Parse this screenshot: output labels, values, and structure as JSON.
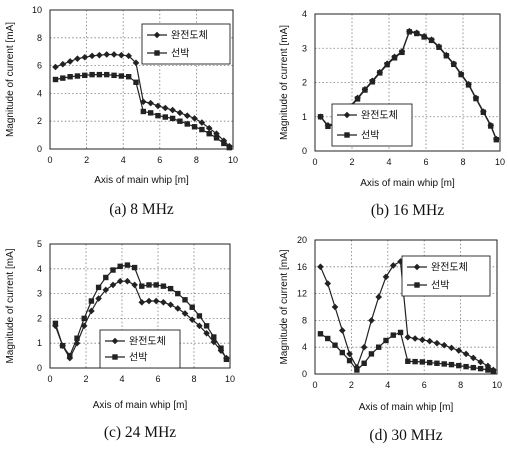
{
  "chart_data": [
    {
      "type": "line",
      "caption": "(a)  8  MHz",
      "xlabel": "Axis of main whip [m]",
      "ylabel": "Magnitude of current [mA]",
      "xlim": [
        0,
        10
      ],
      "ylim": [
        0,
        10
      ],
      "xticks": [
        0,
        2,
        4,
        6,
        8,
        10
      ],
      "yticks": [
        0,
        2,
        4,
        6,
        8,
        10
      ],
      "legend": "top-right",
      "series": [
        {
          "name": "완전도체",
          "marker": "diamond",
          "x": [
            0.3,
            0.7,
            1.1,
            1.5,
            1.9,
            2.3,
            2.7,
            3.1,
            3.5,
            3.9,
            4.3,
            4.7,
            5.1,
            5.5,
            5.9,
            6.3,
            6.7,
            7.1,
            7.5,
            7.9,
            8.3,
            8.7,
            9.1,
            9.5,
            9.8
          ],
          "y": [
            5.9,
            6.1,
            6.3,
            6.5,
            6.6,
            6.7,
            6.75,
            6.8,
            6.8,
            6.75,
            6.7,
            6.2,
            3.4,
            3.3,
            3.1,
            2.95,
            2.8,
            2.6,
            2.4,
            2.2,
            1.9,
            1.5,
            1.1,
            0.6,
            0.2
          ]
        },
        {
          "name": "선박",
          "marker": "square",
          "x": [
            0.3,
            0.7,
            1.1,
            1.5,
            1.9,
            2.3,
            2.7,
            3.1,
            3.5,
            3.9,
            4.3,
            4.7,
            5.1,
            5.5,
            5.9,
            6.3,
            6.7,
            7.1,
            7.5,
            7.9,
            8.3,
            8.7,
            9.1,
            9.5,
            9.8
          ],
          "y": [
            5.0,
            5.1,
            5.2,
            5.25,
            5.3,
            5.35,
            5.35,
            5.35,
            5.3,
            5.25,
            5.2,
            4.8,
            2.7,
            2.6,
            2.4,
            2.3,
            2.2,
            2.0,
            1.8,
            1.6,
            1.4,
            1.1,
            0.8,
            0.4,
            0.1
          ]
        }
      ]
    },
    {
      "type": "line",
      "caption": "(b)  16  MHz",
      "xlabel": "Axis of main whip [m]",
      "ylabel": "Magnitude of current [mA]",
      "xlim": [
        0,
        10
      ],
      "ylim": [
        0,
        4
      ],
      "xticks": [
        0,
        2,
        4,
        6,
        8,
        10
      ],
      "yticks": [
        0,
        1,
        2,
        3,
        4
      ],
      "legend": "bottom-left",
      "series": [
        {
          "name": "완전도체",
          "marker": "diamond",
          "x": [
            0.3,
            0.7,
            1.1,
            1.5,
            1.9,
            2.3,
            2.7,
            3.1,
            3.5,
            3.9,
            4.3,
            4.7,
            5.1,
            5.5,
            5.9,
            6.3,
            6.7,
            7.1,
            7.5,
            7.9,
            8.3,
            8.7,
            9.1,
            9.5,
            9.8
          ],
          "y": [
            1.0,
            0.75,
            0.8,
            1.0,
            1.3,
            1.55,
            1.8,
            2.05,
            2.3,
            2.55,
            2.75,
            2.9,
            3.5,
            3.45,
            3.35,
            3.25,
            3.05,
            2.8,
            2.55,
            2.25,
            1.95,
            1.55,
            1.15,
            0.75,
            0.35
          ]
        },
        {
          "name": "선박",
          "marker": "square",
          "x": [
            0.3,
            0.7,
            1.1,
            1.5,
            1.9,
            2.3,
            2.7,
            3.1,
            3.5,
            3.9,
            4.3,
            4.7,
            5.1,
            5.5,
            5.9,
            6.3,
            6.7,
            7.1,
            7.5,
            7.9,
            8.3,
            8.7,
            9.1,
            9.5,
            9.8
          ],
          "y": [
            1.0,
            0.72,
            0.78,
            0.98,
            1.28,
            1.52,
            1.78,
            2.02,
            2.28,
            2.52,
            2.72,
            2.88,
            3.48,
            3.43,
            3.33,
            3.23,
            3.03,
            2.78,
            2.53,
            2.23,
            1.93,
            1.53,
            1.13,
            0.73,
            0.33
          ]
        }
      ]
    },
    {
      "type": "line",
      "caption": "(c)  24  MHz",
      "xlabel": "Axis of main whip [m]",
      "ylabel": "Magnitude of current [mA]",
      "xlim": [
        0,
        10
      ],
      "ylim": [
        0,
        5
      ],
      "xticks": [
        0,
        2,
        4,
        6,
        8,
        10
      ],
      "yticks": [
        0,
        1,
        2,
        3,
        4,
        5
      ],
      "legend": "bottom-center",
      "series": [
        {
          "name": "완전도체",
          "marker": "diamond",
          "x": [
            0.3,
            0.7,
            1.1,
            1.5,
            1.9,
            2.3,
            2.7,
            3.1,
            3.5,
            3.9,
            4.3,
            4.7,
            5.1,
            5.5,
            5.9,
            6.3,
            6.7,
            7.1,
            7.5,
            7.9,
            8.3,
            8.7,
            9.1,
            9.5,
            9.8
          ],
          "y": [
            1.7,
            0.9,
            0.4,
            1.0,
            1.7,
            2.3,
            2.8,
            3.15,
            3.35,
            3.5,
            3.5,
            3.35,
            2.65,
            2.7,
            2.7,
            2.65,
            2.55,
            2.4,
            2.2,
            1.95,
            1.7,
            1.4,
            1.05,
            0.7,
            0.4
          ]
        },
        {
          "name": "선박",
          "marker": "square",
          "x": [
            0.3,
            0.7,
            1.1,
            1.5,
            1.9,
            2.3,
            2.7,
            3.1,
            3.5,
            3.9,
            4.3,
            4.7,
            5.1,
            5.5,
            5.9,
            6.3,
            6.7,
            7.1,
            7.5,
            7.9,
            8.3,
            8.7,
            9.1,
            9.5,
            9.8
          ],
          "y": [
            1.8,
            0.9,
            0.5,
            1.2,
            2.0,
            2.7,
            3.25,
            3.65,
            3.95,
            4.1,
            4.15,
            4.05,
            3.3,
            3.35,
            3.35,
            3.3,
            3.2,
            3.0,
            2.75,
            2.45,
            2.1,
            1.7,
            1.25,
            0.8,
            0.35
          ]
        }
      ]
    },
    {
      "type": "line",
      "caption": "(d)  30  MHz",
      "xlabel": "Axis of main whip [m]",
      "ylabel": "Magnitude of current [mA]",
      "xlim": [
        0,
        10
      ],
      "ylim": [
        0,
        20
      ],
      "xticks": [
        0,
        2,
        4,
        6,
        8,
        10
      ],
      "yticks": [
        0,
        4,
        8,
        12,
        16,
        20
      ],
      "legend": "top-right",
      "series": [
        {
          "name": "완전도체",
          "marker": "diamond",
          "x": [
            0.3,
            0.7,
            1.1,
            1.5,
            1.9,
            2.3,
            2.7,
            3.1,
            3.5,
            3.9,
            4.3,
            4.7,
            5.1,
            5.5,
            5.9,
            6.3,
            6.7,
            7.1,
            7.5,
            7.9,
            8.3,
            8.7,
            9.1,
            9.5,
            9.8
          ],
          "y": [
            16.0,
            13.5,
            10.0,
            6.5,
            3.0,
            1.0,
            4.0,
            8.0,
            11.5,
            14.5,
            16.2,
            16.8,
            5.5,
            5.3,
            5.1,
            4.9,
            4.6,
            4.3,
            3.9,
            3.5,
            3.0,
            2.4,
            1.8,
            1.2,
            0.6
          ]
        },
        {
          "name": "선박",
          "marker": "square",
          "x": [
            0.3,
            0.7,
            1.1,
            1.5,
            1.9,
            2.3,
            2.7,
            3.1,
            3.5,
            3.9,
            4.3,
            4.7,
            5.1,
            5.5,
            5.9,
            6.3,
            6.7,
            7.1,
            7.5,
            7.9,
            8.3,
            8.7,
            9.1,
            9.5,
            9.8
          ],
          "y": [
            6.0,
            5.3,
            4.3,
            3.2,
            2.0,
            0.6,
            1.6,
            3.0,
            4.0,
            5.0,
            5.8,
            6.2,
            1.9,
            1.85,
            1.8,
            1.7,
            1.6,
            1.5,
            1.4,
            1.25,
            1.1,
            0.95,
            0.8,
            0.6,
            0.4
          ]
        }
      ]
    }
  ]
}
